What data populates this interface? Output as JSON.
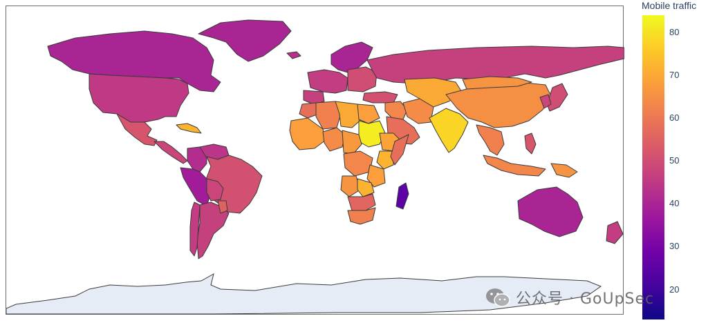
{
  "colorbar": {
    "title": "Mobile traffic",
    "ticks": [
      20,
      30,
      40,
      50,
      60,
      70,
      80
    ],
    "range": [
      13,
      84
    ],
    "colorscale": [
      "#0d0887",
      "#46039f",
      "#7201a8",
      "#9c179e",
      "#bd3786",
      "#d8576b",
      "#ed7953",
      "#fb9f3a",
      "#fdca26",
      "#f0f921"
    ]
  },
  "colors": {
    "border": "#3a3a3a",
    "no_data": "#e5ecf6"
  },
  "regions": [
    {
      "name": "Greenland",
      "value": 40
    },
    {
      "name": "Canada",
      "value": 40
    },
    {
      "name": "United States",
      "value": 45
    },
    {
      "name": "Mexico",
      "value": 52
    },
    {
      "name": "Central America",
      "value": 48
    },
    {
      "name": "Caribbean",
      "value": 72
    },
    {
      "name": "Colombia",
      "value": 42
    },
    {
      "name": "Venezuela",
      "value": 44
    },
    {
      "name": "Peru",
      "value": 38
    },
    {
      "name": "Brazil",
      "value": 51
    },
    {
      "name": "Bolivia",
      "value": 48
    },
    {
      "name": "Argentina",
      "value": 47
    },
    {
      "name": "Chile",
      "value": 46
    },
    {
      "name": "Paraguay",
      "value": 55
    },
    {
      "name": "Iceland",
      "value": 43
    },
    {
      "name": "Scandinavia",
      "value": 40
    },
    {
      "name": "Western Europe",
      "value": 46
    },
    {
      "name": "Iberia",
      "value": 47
    },
    {
      "name": "Eastern Europe",
      "value": 50
    },
    {
      "name": "Russia",
      "value": 47
    },
    {
      "name": "Turkey",
      "value": 51
    },
    {
      "name": "Middle East",
      "value": 63
    },
    {
      "name": "Arabia",
      "value": 58
    },
    {
      "name": "Iran",
      "value": 64
    },
    {
      "name": "Central Asia",
      "value": 70
    },
    {
      "name": "India",
      "value": 78
    },
    {
      "name": "China",
      "value": 65
    },
    {
      "name": "Mongolia",
      "value": 66
    },
    {
      "name": "Southeast Asia",
      "value": 62
    },
    {
      "name": "Japan",
      "value": 50
    },
    {
      "name": "Korea",
      "value": 48
    },
    {
      "name": "Philippines",
      "value": 52
    },
    {
      "name": "Indonesia",
      "value": 63
    },
    {
      "name": "Papua New Guinea",
      "value": 66
    },
    {
      "name": "Australia",
      "value": 40
    },
    {
      "name": "New Zealand",
      "value": 46
    },
    {
      "name": "Morocco",
      "value": 58
    },
    {
      "name": "Algeria",
      "value": 62
    },
    {
      "name": "Libya",
      "value": 70
    },
    {
      "name": "Egypt",
      "value": 68
    },
    {
      "name": "Sudan",
      "value": 82
    },
    {
      "name": "West Africa",
      "value": 68
    },
    {
      "name": "Nigeria",
      "value": 64
    },
    {
      "name": "Central Africa",
      "value": 67
    },
    {
      "name": "Ethiopia",
      "value": 69
    },
    {
      "name": "Kenya",
      "value": 72
    },
    {
      "name": "Somalia",
      "value": 58
    },
    {
      "name": "Congo",
      "value": 63
    },
    {
      "name": "Angola",
      "value": 66
    },
    {
      "name": "Tanzania",
      "value": 68
    },
    {
      "name": "Zambia",
      "value": 72
    },
    {
      "name": "Southern Africa",
      "value": 56
    },
    {
      "name": "South Africa",
      "value": 62
    },
    {
      "name": "Madagascar",
      "value": 25
    }
  ],
  "watermark": {
    "text": "公众号 · GoUpSec",
    "icon": "wechat-icon"
  }
}
